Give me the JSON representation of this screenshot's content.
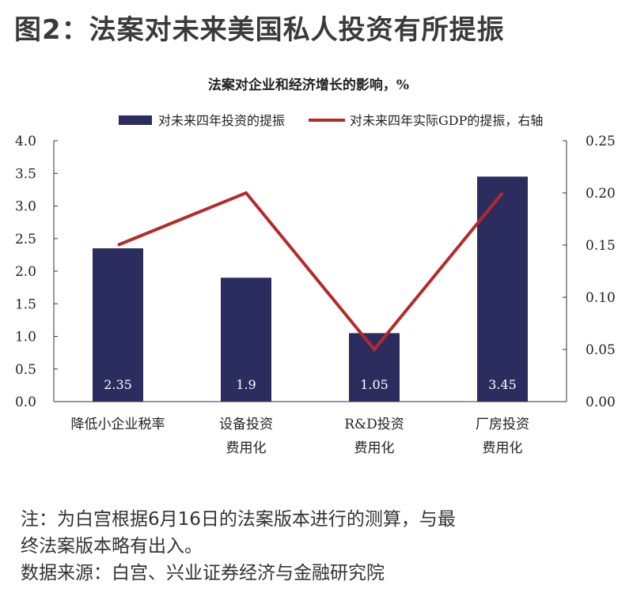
{
  "figure_title": "图2：法案对未来美国私人投资有所提振",
  "chart_data": {
    "type": "bar",
    "title": "法案对企业和经济增长的影响，%",
    "categories": [
      [
        "降低小企业税率"
      ],
      [
        "设备投资",
        "费用化"
      ],
      [
        "R&D投资",
        "费用化"
      ],
      [
        "厂房投资",
        "费用化"
      ]
    ],
    "series": [
      {
        "name": "对未来四年投资的提振",
        "type": "bar",
        "axis": "left",
        "values": [
          2.35,
          1.9,
          1.05,
          3.45
        ],
        "labels": [
          "2.35",
          "1.9",
          "1.05",
          "3.45"
        ],
        "color": "#2b2d5e"
      },
      {
        "name": "对未来四年实际GDP的提振，右轴",
        "type": "line",
        "axis": "right",
        "values": [
          0.15,
          0.2,
          0.05,
          0.2
        ],
        "color": "#b52a2a"
      }
    ],
    "y_left": {
      "lim": [
        0,
        4.0
      ],
      "ticks": [
        "0.0",
        "0.5",
        "1.0",
        "1.5",
        "2.0",
        "2.5",
        "3.0",
        "3.5",
        "4.0"
      ]
    },
    "y_right": {
      "lim": [
        0,
        0.25
      ],
      "ticks": [
        "0.00",
        "0.05",
        "0.10",
        "0.15",
        "0.20",
        "0.25"
      ]
    },
    "legend_position": "top",
    "grid": false
  },
  "notes": {
    "line1": "注：为白宫根据6月16日的法案版本进行的测算，与最",
    "line2": "终法案版本略有出入。",
    "line3": "数据来源：白宫、兴业证券经济与金融研究院"
  }
}
